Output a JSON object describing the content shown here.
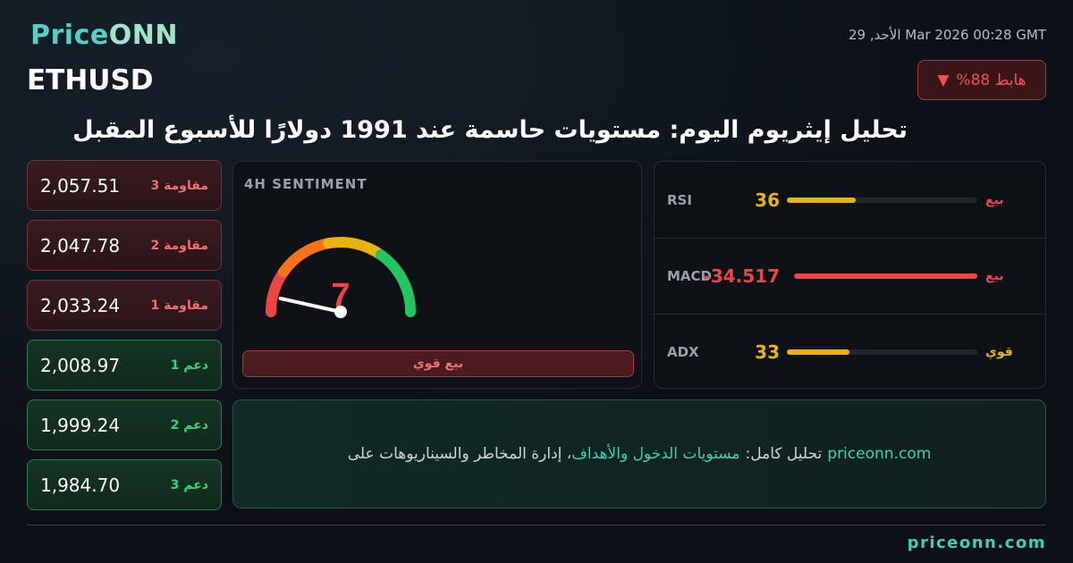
{
  "header": {
    "logo_main": "Price",
    "logo_accent": "ONN",
    "symbol": "ETHUSD",
    "datetime": "الأحد, 29 Mar 2026 00:28 GMT",
    "trend_badge": "%هابط 88",
    "trend_icon": "triangle-down-icon"
  },
  "title": "تحليل إيثريوم اليوم: مستويات حاسمة عند 1991 دولارًا للأسبوع المقبل",
  "levels": [
    {
      "label": "مقاومة 3",
      "value": "2,057.51",
      "type": "resistance"
    },
    {
      "label": "مقاومة 2",
      "value": "2,047.78",
      "type": "resistance"
    },
    {
      "label": "مقاومة 1",
      "value": "2,033.24",
      "type": "resistance"
    },
    {
      "label": "دعم 1",
      "value": "2,008.97",
      "type": "support"
    },
    {
      "label": "دعم 2",
      "value": "1,999.24",
      "type": "support"
    },
    {
      "label": "دعم 3",
      "value": "1,984.70",
      "type": "support"
    }
  ],
  "sentiment": {
    "title": "4H SENTIMENT",
    "value": "7",
    "value_pct": 7,
    "label": "بيع قوي"
  },
  "indicators": [
    {
      "name": "RSI",
      "value": "36",
      "fill_pct": 36,
      "signal": "بيع",
      "value_color": "#eab308",
      "signal_color": "#ef4444"
    },
    {
      "name": "MACD",
      "value": "-34.517",
      "fill_pct": 100,
      "signal": "بيع",
      "value_color": "#ef4444",
      "signal_color": "#ef4444"
    },
    {
      "name": "ADX",
      "value": "33",
      "fill_pct": 33,
      "signal": "قوي",
      "value_color": "#eab308",
      "signal_color": "#eab308"
    }
  ],
  "banner": {
    "site": "priceonn.com",
    "prefix": "تحليل كامل:",
    "highlight": "مستويات الدخول والأهداف",
    "suffix": "، إدارة المخاطر والسيناريوهات على"
  },
  "footer": {
    "site": "priceonn.com"
  },
  "colors": {
    "bearish": "#ef4444",
    "bullish": "#22c55e",
    "accent": "#3fd0b0"
  }
}
